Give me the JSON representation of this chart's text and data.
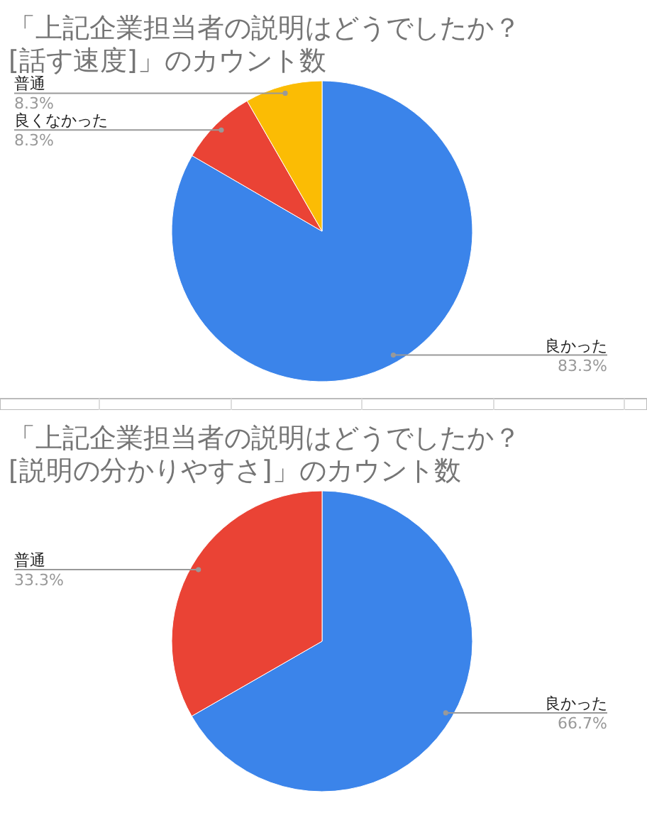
{
  "chart_data": [
    {
      "type": "pie",
      "title": "「上記企業担当者の説明はどうでしたか？\n[話す速度]」のカウント数",
      "categories": [
        "良かった",
        "良くなかった",
        "普通"
      ],
      "values": [
        83.3,
        8.3,
        8.3
      ],
      "colors": [
        "#3b84ea",
        "#ea4335",
        "#fbbc04"
      ],
      "value_labels": [
        "83.3%",
        "8.3%",
        "8.3%"
      ]
    },
    {
      "type": "pie",
      "title": "「上記企業担当者の説明はどうでしたか？\n[説明の分かりやすさ]」のカウント数",
      "categories": [
        "良かった",
        "普通"
      ],
      "values": [
        66.7,
        33.3
      ],
      "colors": [
        "#3b84ea",
        "#ea4335"
      ],
      "value_labels": [
        "66.7%",
        "33.3%"
      ]
    }
  ]
}
